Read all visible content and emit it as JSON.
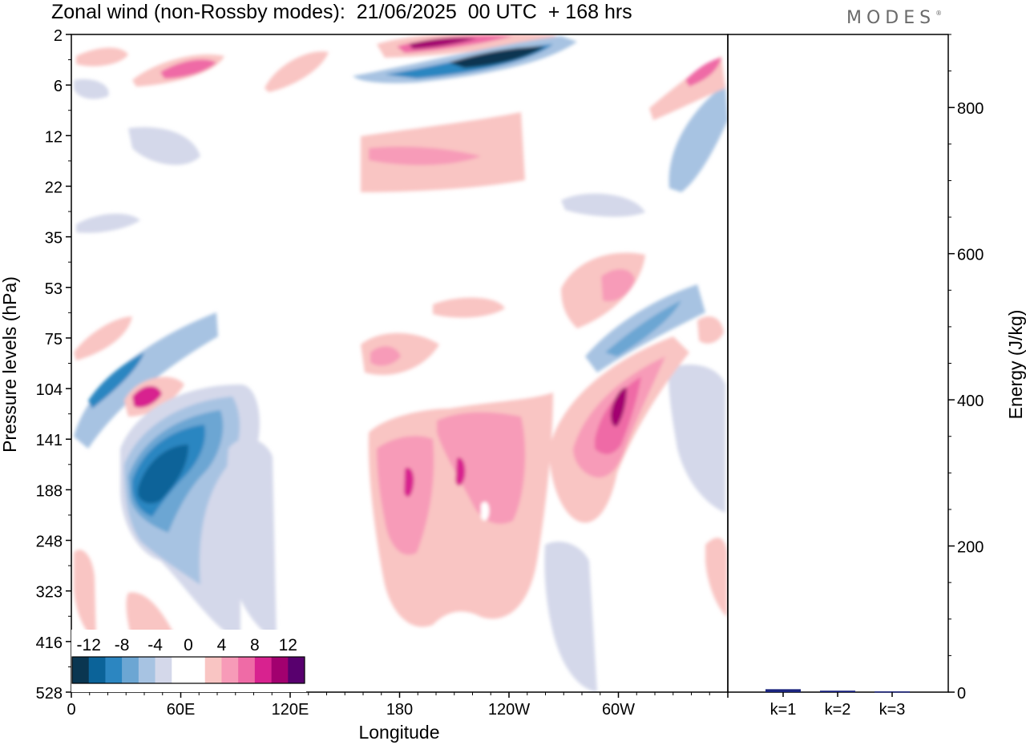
{
  "title": "Zonal wind (non-Rossby modes):  21/06/2025  00 UTC  + 168 hrs",
  "brand": "MODES",
  "colors": {
    "scale": [
      "#0a3651",
      "#0b6399",
      "#2c86c1",
      "#6ca6d3",
      "#a7c3e2",
      "#d4d8ea",
      "#ffffff",
      "#ffffff",
      "#f9c5c3",
      "#f79bb8",
      "#ef6ba6",
      "#d8228f",
      "#a2006f",
      "#58006e"
    ],
    "bar": "#1a237e"
  },
  "chart_data": [
    {
      "type": "heatmap",
      "xlabel": "Longitude",
      "ylabel": "Pressure levels (hPa)",
      "x_ticks": [
        "0",
        "60E",
        "120E",
        "180",
        "120W",
        "60W"
      ],
      "y_ticks": [
        "2",
        "6",
        "12",
        "22",
        "35",
        "53",
        "75",
        "104",
        "141",
        "188",
        "248",
        "323",
        "416",
        "528"
      ],
      "colorbar_labels": [
        "-12",
        "-8",
        "-4",
        "0",
        "4",
        "8",
        "12"
      ],
      "notable_features": [
        {
          "lon": 200,
          "level": "2-6",
          "value": 14
        },
        {
          "lon": 240,
          "level": "4-6",
          "value": -14
        },
        {
          "lon": 45,
          "level": "141-248",
          "value": -12
        },
        {
          "lon": 40,
          "level": "104-141",
          "value": 9
        },
        {
          "lon": 300,
          "level": "104-141",
          "value": 11
        },
        {
          "lon": 210,
          "level": "141-248",
          "value": 7
        }
      ]
    },
    {
      "type": "bar",
      "categories": [
        "k=1",
        "k=2",
        "k=3"
      ],
      "values": [
        4,
        2,
        1
      ],
      "ylabel": "Energy (J/kg)",
      "ylim": [
        0,
        900
      ],
      "y_ticks": [
        0,
        200,
        400,
        600,
        800
      ]
    }
  ]
}
